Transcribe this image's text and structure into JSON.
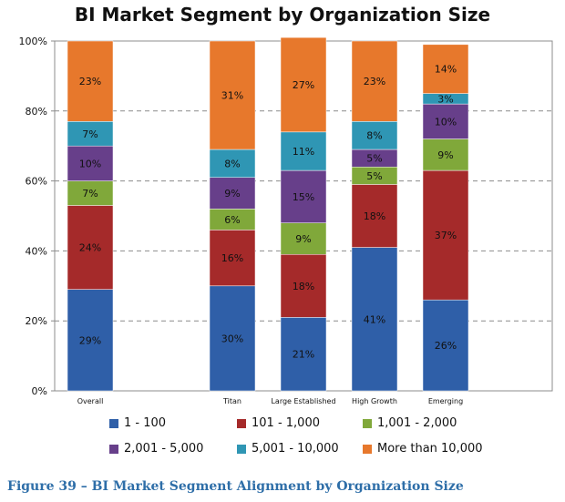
{
  "chart_data": {
    "type": "bar",
    "stacked": true,
    "title": "BI Market Segment by Organization Size",
    "categories": [
      "Overall",
      "Titan",
      "Large Established",
      "High Growth",
      "Emerging"
    ],
    "category_slots": [
      0,
      2,
      3,
      4,
      5
    ],
    "ylim": [
      0,
      100
    ],
    "yticks": [
      "0%",
      "20%",
      "40%",
      "60%",
      "80%",
      "100%"
    ],
    "grid": true,
    "legend": "bottom",
    "series": [
      {
        "name": "1 - 100",
        "color": "#2f5fa8",
        "values": [
          29,
          30,
          21,
          41,
          26
        ],
        "labels": [
          "29%",
          "30%",
          "21%",
          "41%",
          "26%"
        ]
      },
      {
        "name": "101 - 1,000",
        "color": "#a52a2a",
        "values": [
          24,
          16,
          18,
          18,
          37
        ],
        "labels": [
          "24%",
          "16%",
          "18%",
          "18%",
          "37%"
        ]
      },
      {
        "name": "1,001 - 2,000",
        "color": "#80a83a",
        "values": [
          7,
          6,
          9,
          5,
          9
        ],
        "labels": [
          "7%",
          "6%",
          "9%",
          "5%",
          "9%"
        ]
      },
      {
        "name": "2,001 - 5,000",
        "color": "#673f8a",
        "values": [
          10,
          9,
          15,
          5,
          10
        ],
        "labels": [
          "10%",
          "9%",
          "15%",
          "5%",
          "10%"
        ]
      },
      {
        "name": "5,001 - 10,000",
        "color": "#2f96b4",
        "values": [
          7,
          8,
          11,
          8,
          3
        ],
        "labels": [
          "7%",
          "8%",
          "11%",
          "8%",
          "3%"
        ]
      },
      {
        "name": "More than 10,000",
        "color": "#e7782c",
        "values": [
          23,
          31,
          27,
          23,
          14
        ],
        "labels": [
          "23%",
          "31%",
          "27%",
          "23%",
          "14%"
        ]
      }
    ]
  },
  "caption": "Figure 39 – BI Market Segment Alignment by Organization Size"
}
